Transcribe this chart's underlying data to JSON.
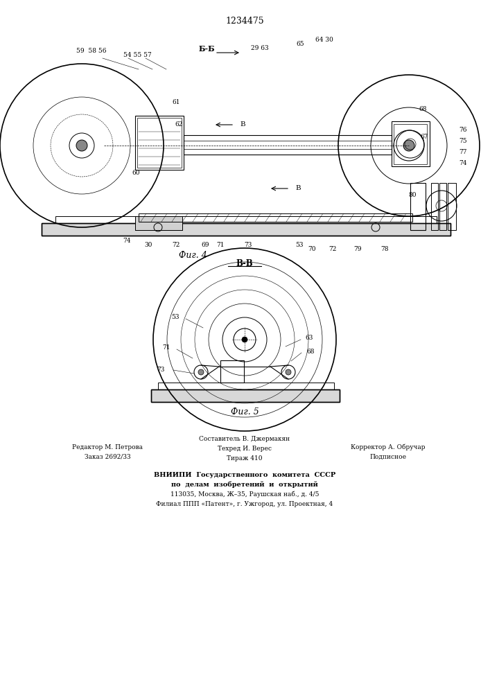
{
  "patent_number": "1234475",
  "fig4_label": "Фиг. 4",
  "fig5_label": "Фиг. 5",
  "section_bb": "Б-Б",
  "section_vv": "В-В",
  "arrow_b": "В",
  "footer_left_line1": "Редактор М. Петрова",
  "footer_left_line2": "Заказ 2692/33",
  "footer_center_line1": "Составитель В. Джермакян",
  "footer_center_line2": "Техред И. Верес",
  "footer_center_line3": "Тираж 410",
  "footer_right_line1": "Корректор А. Обручар",
  "footer_right_line2": "Подписное",
  "footer_vniip1": "ВНИИПИ  Государственного  комитета  СССР",
  "footer_vniip2": "по  делам  изобретений  и  открытий",
  "footer_vniip3": "113035, Москва, Ж–35, Раушская наб., д. 4/5",
  "footer_vniip4": "Филиал ППП «Патент», г. Ужгород, ул. Проектная, 4",
  "bg_color": "#ffffff",
  "line_color": "#000000"
}
